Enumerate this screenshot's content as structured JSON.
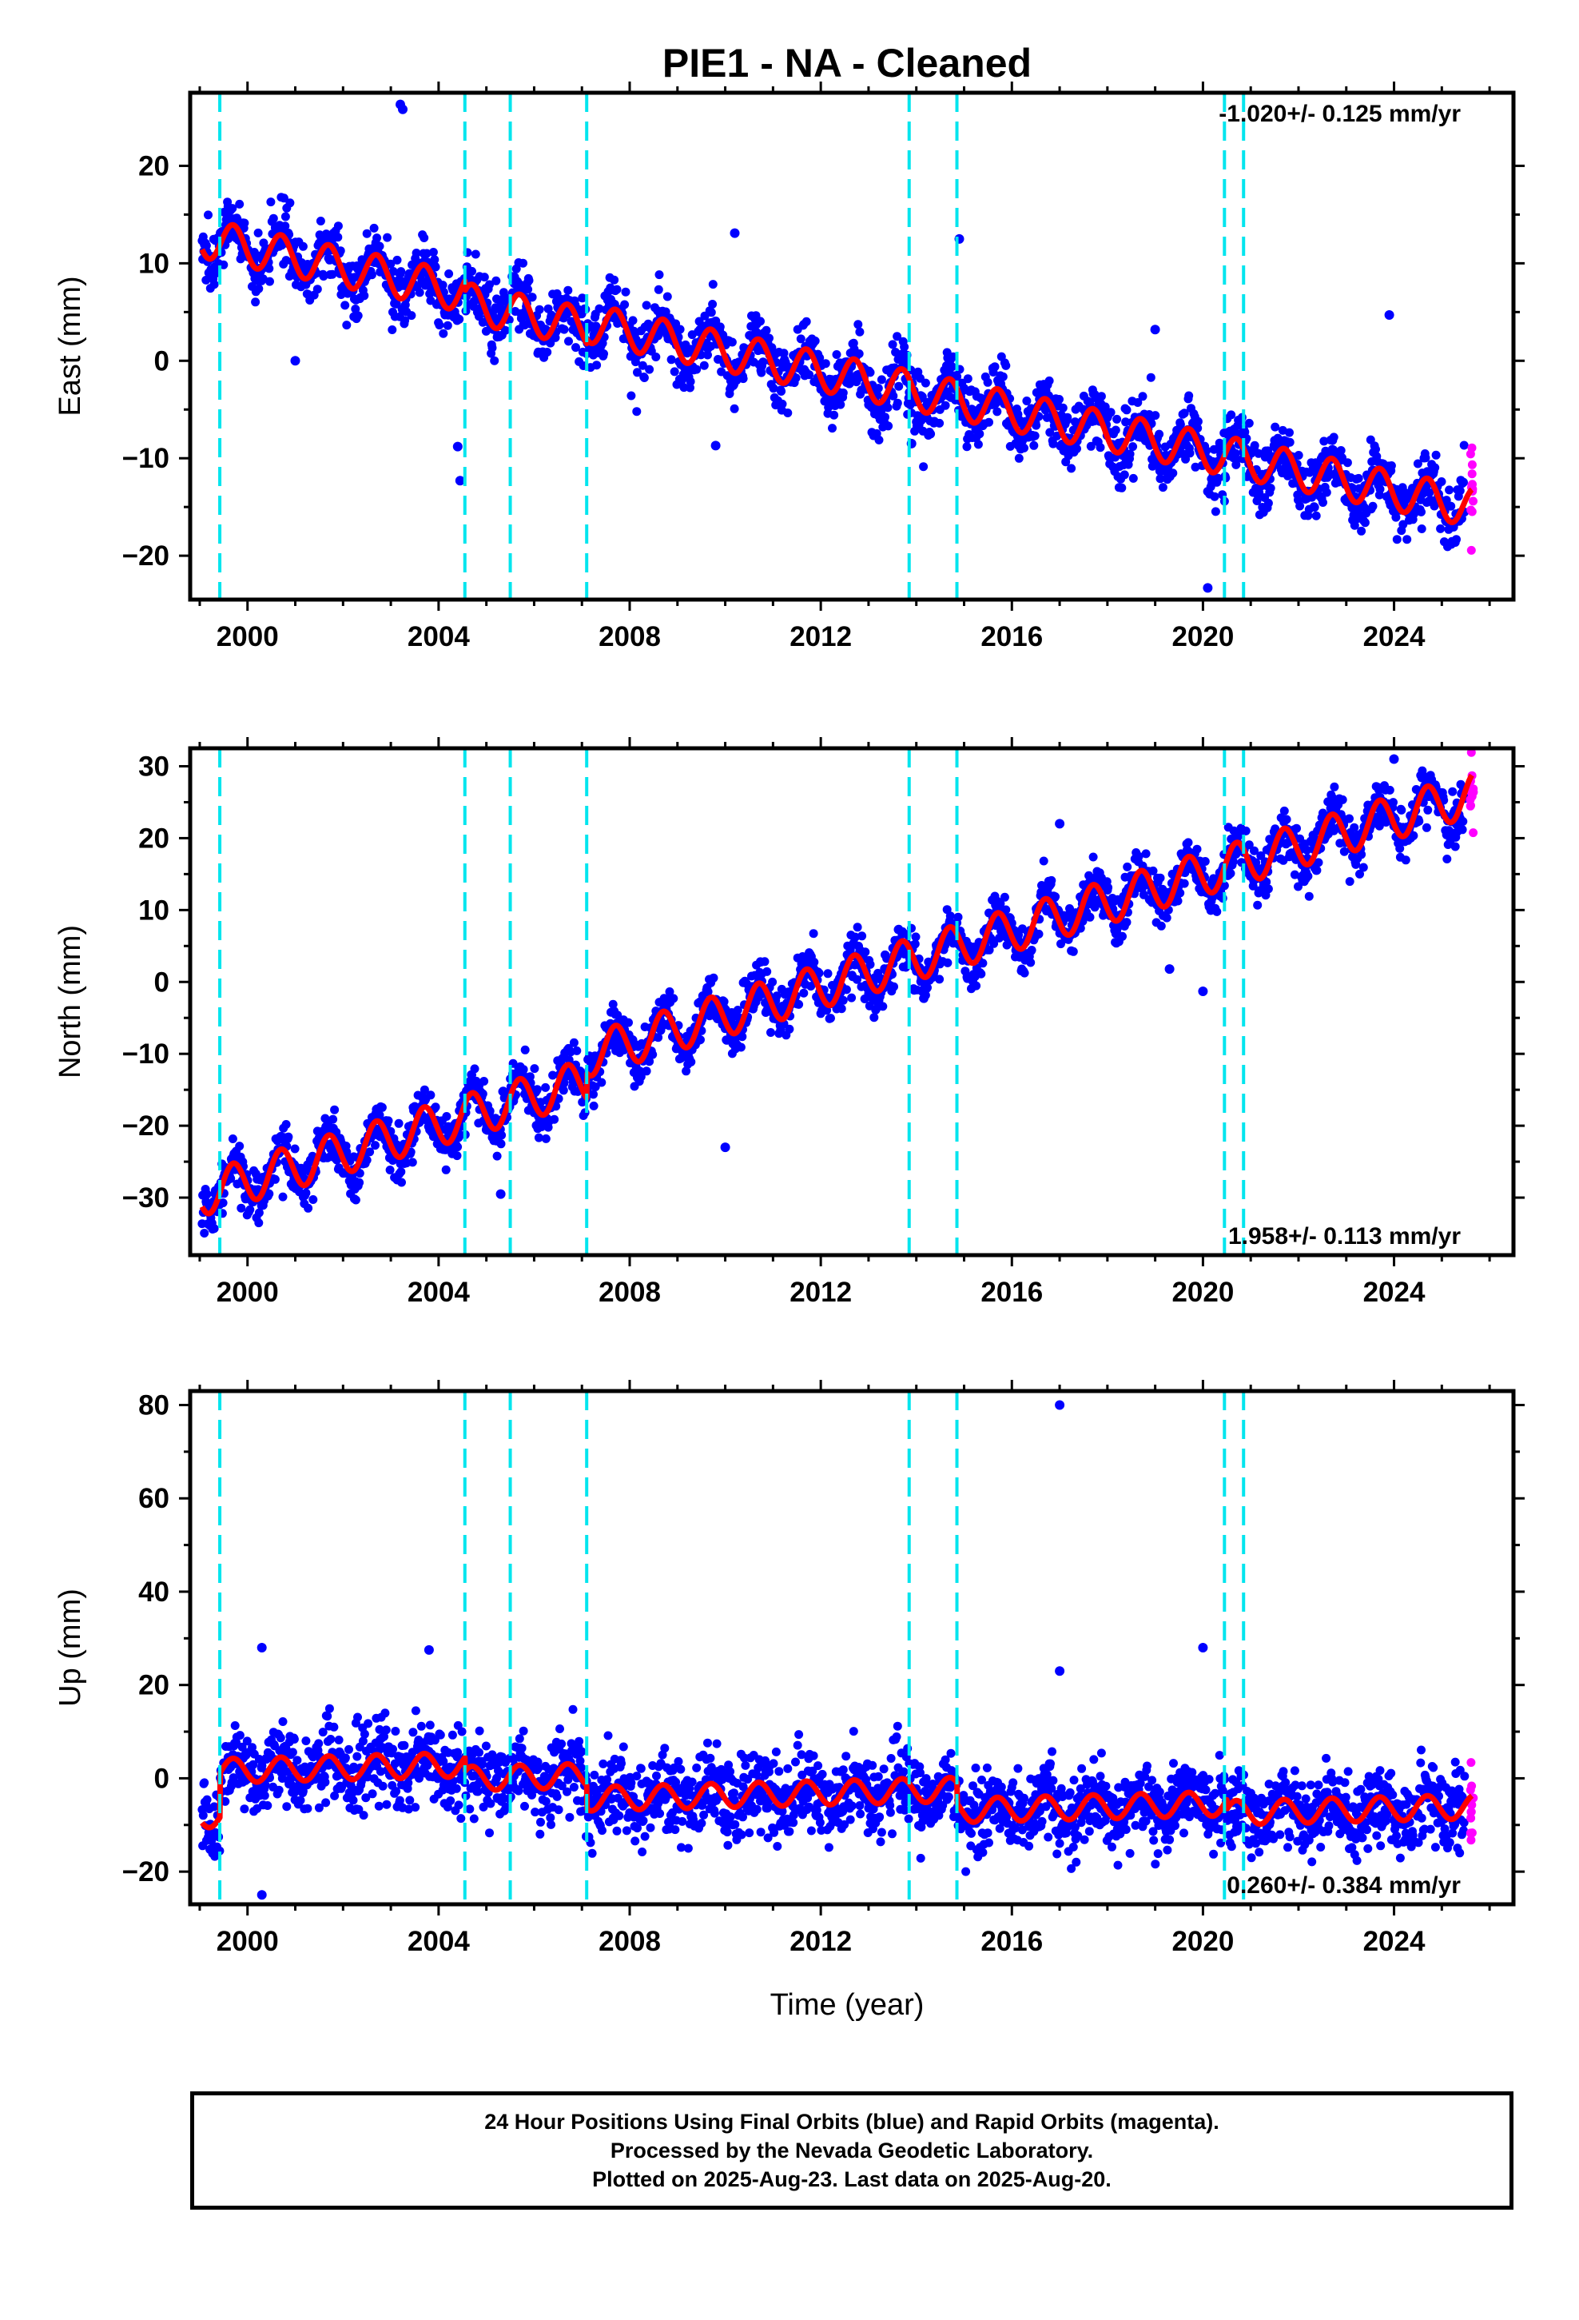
{
  "title": "PIE1  - NA - Cleaned",
  "colors": {
    "final_orbits": "#0000ff",
    "rapid_orbits": "#ff00ff",
    "model": "#ff0000",
    "event_lines": "#00e5ee",
    "frame": "#000000"
  },
  "chart_data": [
    {
      "type": "scatter",
      "component": "east",
      "ylabel": "East (mm)",
      "xlabel": "",
      "rate_label": "-1.020+/- 0.125 mm/yr",
      "rate_label_position": "top-right",
      "xlim": [
        1998.8,
        2026.5
      ],
      "ylim": [
        -24.5,
        27.5
      ],
      "xticks": [
        2000,
        2004,
        2008,
        2012,
        2016,
        2020,
        2024
      ],
      "yticks": [
        -20,
        -10,
        0,
        10,
        20
      ],
      "grid": false,
      "start_year": 1999.05,
      "end_year": 2025.63,
      "trend": {
        "value_at_start": 12.6,
        "rate_mm_per_yr": -1.02
      },
      "seasonal_amplitude": 2.0,
      "scatter_sd": 1.6,
      "offsets": [
        {
          "year": 2004.55,
          "value": -1.0
        },
        {
          "year": 2007.1,
          "value": 0.5
        }
      ],
      "outliers": [
        [
          2003.2,
          26.3
        ],
        [
          2003.25,
          25.8
        ],
        [
          2004.4,
          -8.8
        ],
        [
          2004.45,
          -12.3
        ],
        [
          2001.0,
          0.0
        ],
        [
          2010.2,
          13.1
        ],
        [
          2014.9,
          12.5
        ],
        [
          2019.0,
          3.2
        ],
        [
          2020.1,
          -23.3
        ],
        [
          2023.9,
          4.7
        ],
        [
          2009.8,
          -8.7
        ],
        [
          2013.9,
          -8.5
        ]
      ]
    },
    {
      "type": "scatter",
      "component": "north",
      "ylabel": "North (mm)",
      "xlabel": "",
      "rate_label": "1.958+/- 0.113 mm/yr",
      "rate_label_position": "bottom-right",
      "xlim": [
        1998.8,
        2026.5
      ],
      "ylim": [
        -38,
        32.5
      ],
      "xticks": [
        2000,
        2004,
        2008,
        2012,
        2016,
        2020,
        2024
      ],
      "yticks": [
        -30,
        -20,
        -10,
        0,
        10,
        20,
        30
      ],
      "grid": false,
      "start_year": 1999.05,
      "end_year": 2025.63,
      "trend": {
        "value_at_start": -29.5,
        "rate_mm_per_yr": 1.958
      },
      "seasonal_amplitude": 3.0,
      "scatter_sd": 1.7,
      "offsets": [
        {
          "year": 2007.1,
          "value": 3.5
        }
      ],
      "outliers": [
        [
          2010.0,
          -23.0
        ],
        [
          2017.0,
          22.0
        ],
        [
          2020.0,
          -1.3
        ],
        [
          2024.0,
          31.0
        ],
        [
          2005.3,
          -29.5
        ],
        [
          2019.3,
          1.8
        ]
      ]
    },
    {
      "type": "scatter",
      "component": "up",
      "ylabel": "Up (mm)",
      "xlabel": "Time (year)",
      "rate_label": "0.260+/- 0.384 mm/yr",
      "rate_label_position": "bottom-right",
      "xlim": [
        1998.8,
        2026.5
      ],
      "ylim": [
        -27,
        83
      ],
      "xticks": [
        2000,
        2004,
        2008,
        2012,
        2016,
        2020,
        2024
      ],
      "yticks": [
        -20,
        0,
        20,
        40,
        60,
        80
      ],
      "grid": false,
      "start_year": 1999.05,
      "end_year": 2025.63,
      "trend": {
        "value_at_start": -8.0,
        "rate_mm_per_yr": 0.26
      },
      "seasonal_amplitude": 2.6,
      "scatter_sd": 4.2,
      "offsets": [
        {
          "year": 1999.42,
          "value": 9.5
        },
        {
          "year": 2004.55,
          "value": -3.0
        },
        {
          "year": 2007.1,
          "value": -5.0
        },
        {
          "year": 2014.85,
          "value": -4.5
        },
        {
          "year": 2020.5,
          "value": -2.0
        }
      ],
      "outliers": [
        [
          2017.0,
          80.0
        ],
        [
          2000.3,
          28.0
        ],
        [
          2020.0,
          28.0
        ],
        [
          2003.8,
          27.5
        ],
        [
          2000.3,
          -25.0
        ],
        [
          2017.0,
          23.0
        ]
      ]
    }
  ],
  "event_lines_years": [
    1999.42,
    2004.55,
    2005.5,
    2007.1,
    2013.85,
    2014.85,
    2020.45,
    2020.85
  ],
  "rapid_orbits_start_year": 2025.48,
  "caption": {
    "line1": "24 Hour Positions Using Final Orbits (blue) and Rapid Orbits (magenta).",
    "line2": "Processed by the Nevada Geodetic Laboratory.",
    "line3": "Plotted on 2025-Aug-23. Last data on 2025-Aug-20."
  }
}
